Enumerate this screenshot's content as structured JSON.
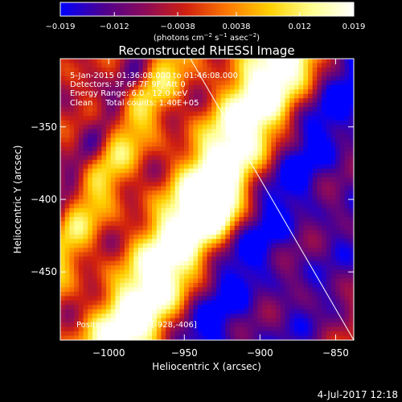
{
  "chart_data": {
    "type": "heatmap",
    "title": "Reconstructed RHESSI Image",
    "xlabel": "Heliocentric X (arcsec)",
    "ylabel": "Heliocentric Y (arcsec)",
    "xlim": [
      -1032,
      -838
    ],
    "ylim": [
      -497,
      -303
    ],
    "x_ticks": [
      -1000,
      -950,
      -900,
      -850
    ],
    "y_ticks": [
      -350,
      -400,
      -450
    ],
    "x_tick_labels": [
      "−1000",
      "−950",
      "−900",
      "−850"
    ],
    "y_tick_labels": [
      "−350",
      "−400",
      "−450"
    ],
    "colorbar": {
      "range": [
        -0.019,
        0.019
      ],
      "ticks": [
        -0.019,
        -0.012,
        -0.0038,
        0.0038,
        0.012,
        0.019
      ],
      "tick_labels": [
        "−0.019",
        "−0.012",
        "−0.0038",
        "0.0038",
        "0.012",
        "0.019"
      ],
      "unit_main": "(photons cm",
      "unit_sup1": "−2",
      "unit_mid": " s",
      "unit_sup2": "−1",
      "unit_asec": " asec",
      "unit_sup3": "−2",
      "unit_end": ")",
      "colors": [
        "#0000ff",
        "#4b0092",
        "#8b0a5a",
        "#d02010",
        "#ff7a00",
        "#ffd000",
        "#ffff90",
        "#ffffff"
      ]
    },
    "annotations": {
      "time_range": "5-Jan-2015 01:36:08.000 to 01:46:08.000",
      "detectors": "Detectors: 3F 6F 7F 9F, Att 0",
      "energy": "Energy Range: 6.0 - 12.0 keV",
      "clean": "Clean     Total counts: 1.40E+05",
      "peak": "Position of Peak = [-928,-406]"
    },
    "peak": {
      "x": -928,
      "y": -406
    },
    "limb_line": [
      [
        -946,
        -303
      ],
      [
        -838,
        -497
      ]
    ]
  },
  "footer": {
    "timestamp": "4-Jul-2017 12:18"
  }
}
